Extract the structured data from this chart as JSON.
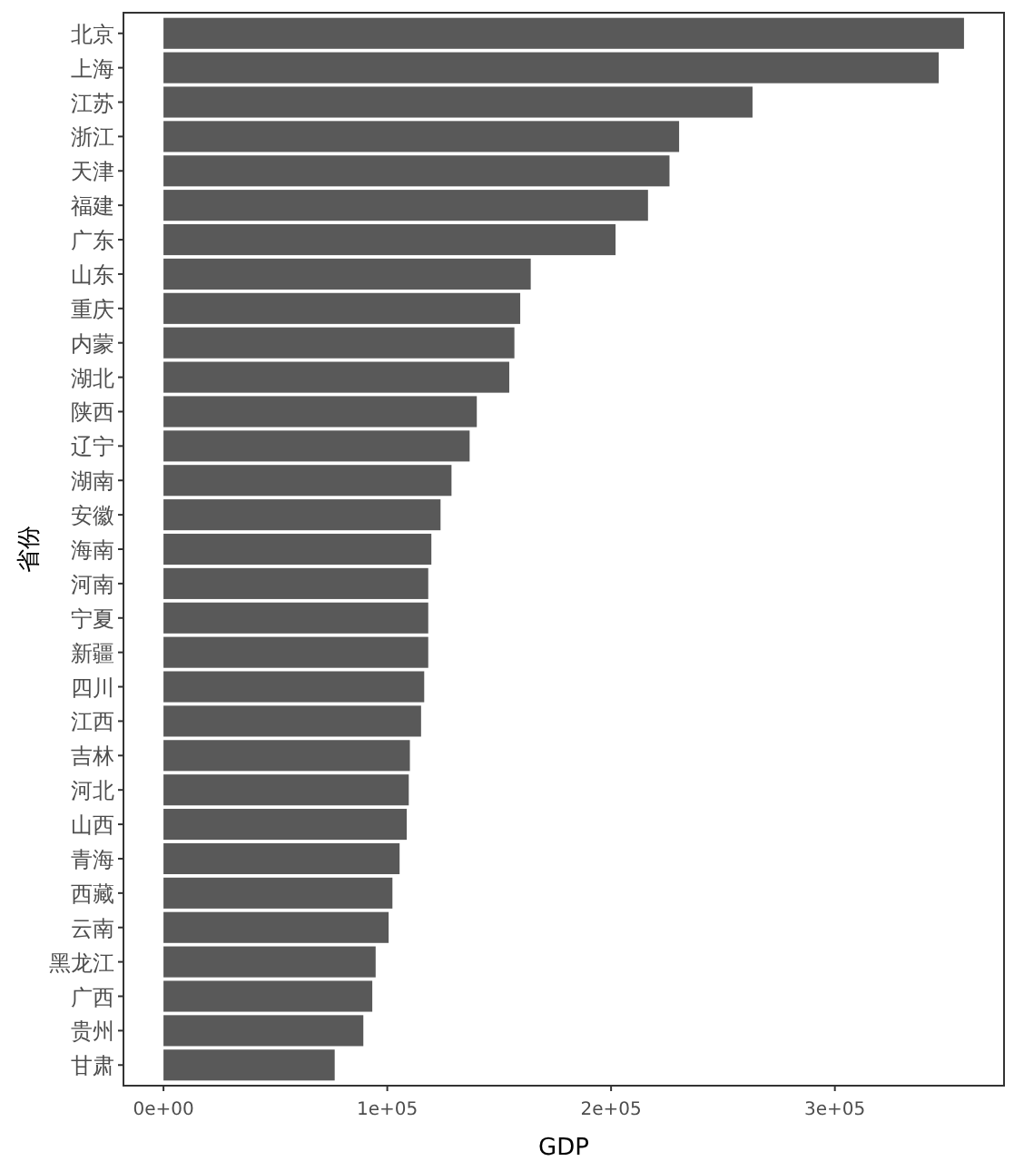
{
  "chart_data": {
    "type": "bar",
    "orientation": "horizontal",
    "xlabel": "GDP",
    "ylabel": "省份",
    "color": "#595959",
    "categories": [
      "北京",
      "上海",
      "江苏",
      "浙江",
      "天津",
      "福建",
      "广东",
      "山东",
      "重庆",
      "内蒙",
      "湖北",
      "陕西",
      "辽宁",
      "湖南",
      "安徽",
      "海南",
      "河南",
      "宁夏",
      "新疆",
      "四川",
      "江西",
      "吉林",
      "河北",
      "山西",
      "青海",
      "西藏",
      "云南",
      "黑龙江",
      "广西",
      "贵州",
      "甘肃"
    ],
    "values": [
      357700,
      346400,
      263200,
      230400,
      226100,
      216500,
      202000,
      164100,
      159400,
      156800,
      154500,
      140000,
      136800,
      128700,
      123800,
      119700,
      118300,
      118300,
      118300,
      116500,
      115100,
      110100,
      109600,
      108700,
      105500,
      102300,
      100600,
      94800,
      93300,
      89300,
      76500
    ],
    "xlim": [
      -17885,
      375585
    ],
    "xticks": [
      {
        "value": 0,
        "label": "0e+00"
      },
      {
        "value": 100000,
        "label": "1e+05"
      },
      {
        "value": 200000,
        "label": "2e+05"
      },
      {
        "value": 300000,
        "label": "3e+05"
      }
    ],
    "grid": false
  }
}
